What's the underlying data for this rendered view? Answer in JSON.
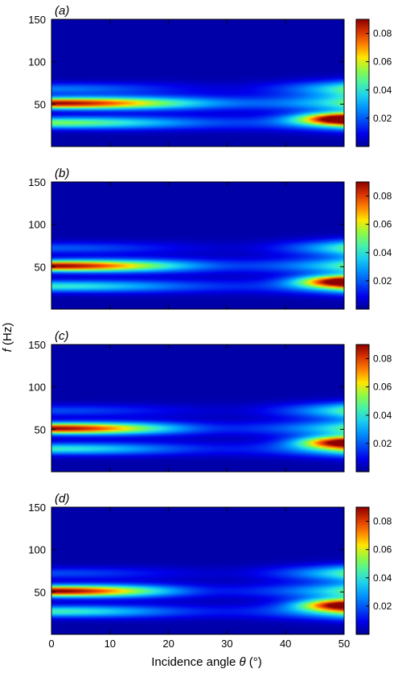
{
  "figure": {
    "ylabel_italic": "f",
    "ylabel_unit": " (Hz)",
    "xlabel_prefix": "Incidence angle ",
    "xlabel_symbol": "θ",
    "xlabel_unit": " (°)"
  },
  "chart_data": [
    {
      "type": "heatmap",
      "panel_label": "(a)",
      "xlim": [
        0,
        50
      ],
      "ylim": [
        0,
        150
      ],
      "x_ticks": [
        0,
        10,
        20,
        30,
        40,
        50
      ],
      "y_ticks": [
        50,
        100,
        150
      ],
      "colorbar": {
        "range": [
          0,
          0.09
        ],
        "ticks": [
          0.02,
          0.04,
          0.06,
          0.08
        ]
      },
      "bands": [
        {
          "f_hz": 51,
          "amp_max": 0.088,
          "amp_min": 0.02,
          "theta_min": 35
        },
        {
          "f_hz": 28,
          "amp_max": 0.05,
          "amp_min": 0.015,
          "theta_min": 33
        },
        {
          "f_hz": 68,
          "amp_max": 0.022,
          "amp_min": 0.005,
          "theta_min": 30
        }
      ],
      "high_angle_max": {
        "theta": 50,
        "f_hz": 33,
        "value": 0.088
      }
    },
    {
      "type": "heatmap",
      "panel_label": "(b)",
      "xlim": [
        0,
        50
      ],
      "ylim": [
        0,
        150
      ],
      "x_ticks": [
        0,
        10,
        20,
        30,
        40,
        50
      ],
      "y_ticks": [
        50,
        100,
        150
      ],
      "colorbar": {
        "range": [
          0,
          0.09
        ],
        "ticks": [
          0.02,
          0.04,
          0.06,
          0.08
        ]
      },
      "bands": [
        {
          "f_hz": 51,
          "amp_max": 0.088,
          "amp_min": 0.015,
          "theta_min": 33
        },
        {
          "f_hz": 27,
          "amp_max": 0.04,
          "amp_min": 0.012,
          "theta_min": 33
        },
        {
          "f_hz": 72,
          "amp_max": 0.018,
          "amp_min": 0.004,
          "theta_min": 31
        }
      ],
      "high_angle_max": {
        "theta": 50,
        "f_hz": 33,
        "value": 0.085
      }
    },
    {
      "type": "heatmap",
      "panel_label": "(c)",
      "xlim": [
        0,
        50
      ],
      "ylim": [
        0,
        150
      ],
      "x_ticks": [
        0,
        10,
        20,
        30,
        40,
        50
      ],
      "y_ticks": [
        50,
        100,
        150
      ],
      "colorbar": {
        "range": [
          0,
          0.09
        ],
        "ticks": [
          0.02,
          0.04,
          0.06,
          0.08
        ]
      },
      "bands": [
        {
          "f_hz": 51,
          "amp_max": 0.088,
          "amp_min": 0.012,
          "theta_min": 31
        },
        {
          "f_hz": 27,
          "amp_max": 0.04,
          "amp_min": 0.01,
          "theta_min": 31
        },
        {
          "f_hz": 72,
          "amp_max": 0.016,
          "amp_min": 0.004,
          "theta_min": 30
        }
      ],
      "high_angle_max": {
        "theta": 50,
        "f_hz": 35,
        "value": 0.085
      }
    },
    {
      "type": "heatmap",
      "panel_label": "(d)",
      "xlim": [
        0,
        50
      ],
      "ylim": [
        0,
        150
      ],
      "x_ticks": [
        0,
        10,
        20,
        30,
        40,
        50
      ],
      "y_ticks": [
        50,
        100,
        150
      ],
      "colorbar": {
        "range": [
          0,
          0.09
        ],
        "ticks": [
          0.02,
          0.04,
          0.06,
          0.08
        ]
      },
      "bands": [
        {
          "f_hz": 51,
          "amp_max": 0.09,
          "amp_min": 0.01,
          "theta_min": 30
        },
        {
          "f_hz": 27,
          "amp_max": 0.042,
          "amp_min": 0.01,
          "theta_min": 30
        },
        {
          "f_hz": 72,
          "amp_max": 0.016,
          "amp_min": 0.004,
          "theta_min": 29
        }
      ],
      "high_angle_max": {
        "theta": 50,
        "f_hz": 35,
        "value": 0.085
      }
    }
  ]
}
